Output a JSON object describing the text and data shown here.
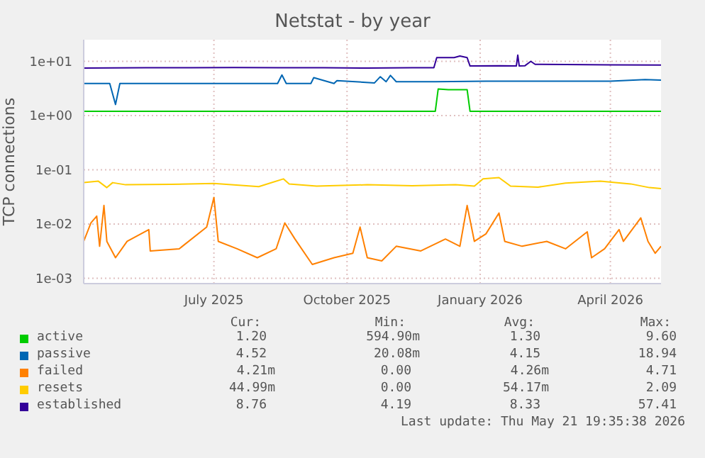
{
  "chart_data": {
    "type": "line",
    "title": "Netstat - by year",
    "ylabel": "TCP connections",
    "log": true,
    "grid": true,
    "legend": "bottom",
    "marker": "none",
    "line_style": "solid",
    "xlim": [
      "2025-04-02",
      "2026-05-06"
    ],
    "xticks": [
      {
        "value": "2025-07-01",
        "label": "July 2025"
      },
      {
        "value": "2025-10-01",
        "label": "October 2025"
      },
      {
        "value": "2026-01-01",
        "label": "January 2026"
      },
      {
        "value": "2026-04-01",
        "label": "April 2026"
      }
    ],
    "ylim": [
      0.0008,
      25
    ],
    "yticks": [
      {
        "value": 0.001,
        "label": "1e-03"
      },
      {
        "value": 0.01,
        "label": "1e-02"
      },
      {
        "value": 0.1,
        "label": "1e-01"
      },
      {
        "value": 1,
        "label": "1e+00"
      },
      {
        "value": 10,
        "label": "1e+01"
      }
    ],
    "series": [
      {
        "name": "active",
        "color": "#00cc00",
        "x": [
          "2025-04-02",
          "2025-12-01",
          "2025-12-03",
          "2025-12-10",
          "2025-12-23",
          "2025-12-25",
          "2026-05-06"
        ],
        "values": [
          1.2,
          1.2,
          3.1,
          3.0,
          3.0,
          1.2,
          1.2
        ]
      },
      {
        "name": "passive",
        "color": "#0066b3",
        "x": [
          "2025-04-02",
          "2025-04-20",
          "2025-04-24",
          "2025-04-27",
          "2025-05-10",
          "2025-06-10",
          "2025-07-01",
          "2025-08-14",
          "2025-08-17",
          "2025-08-20",
          "2025-09-06",
          "2025-09-08",
          "2025-09-22",
          "2025-09-24",
          "2025-10-20",
          "2025-10-24",
          "2025-10-28",
          "2025-10-31",
          "2025-11-04",
          "2025-12-01",
          "2026-01-05",
          "2026-02-01",
          "2026-03-01",
          "2026-04-01",
          "2026-04-25",
          "2026-05-06"
        ],
        "values": [
          3.9,
          3.9,
          1.6,
          3.9,
          3.9,
          3.9,
          3.9,
          3.9,
          5.6,
          3.9,
          3.9,
          5,
          3.9,
          4.4,
          4.0,
          5.2,
          4.2,
          5.5,
          4.2,
          4.2,
          4.3,
          4.3,
          4.3,
          4.3,
          4.6,
          4.5
        ]
      },
      {
        "name": "failed",
        "color": "#ff8000",
        "x": [
          "2025-04-02",
          "2025-04-07",
          "2025-04-11",
          "2025-04-13",
          "2025-04-16",
          "2025-04-18",
          "2025-04-24",
          "2025-05-02",
          "2025-05-17",
          "2025-05-18",
          "2025-06-07",
          "2025-06-26",
          "2025-07-01",
          "2025-07-04",
          "2025-07-17",
          "2025-07-31",
          "2025-08-13",
          "2025-08-19",
          "2025-08-26",
          "2025-09-07",
          "2025-09-22",
          "2025-10-05",
          "2025-10-10",
          "2025-10-15",
          "2025-10-25",
          "2025-11-04",
          "2025-11-21",
          "2025-12-08",
          "2025-12-18",
          "2025-12-23",
          "2025-12-28",
          "2026-01-05",
          "2026-01-14",
          "2026-01-18",
          "2026-01-30",
          "2026-02-16",
          "2026-03-01",
          "2026-03-16",
          "2026-03-19",
          "2026-03-28",
          "2026-04-07",
          "2026-04-10",
          "2026-04-22",
          "2026-04-27",
          "2026-05-02",
          "2026-05-06"
        ],
        "values": [
          0.0048,
          0.0105,
          0.014,
          0.0039,
          0.022,
          0.0048,
          0.0024,
          0.0048,
          0.0079,
          0.0032,
          0.0035,
          0.0088,
          0.031,
          0.0048,
          0.0035,
          0.0024,
          0.0035,
          0.0105,
          0.0053,
          0.0018,
          0.0024,
          0.0029,
          0.0088,
          0.0024,
          0.0021,
          0.0039,
          0.0032,
          0.0053,
          0.0039,
          0.022,
          0.0048,
          0.0066,
          0.016,
          0.0048,
          0.0039,
          0.0048,
          0.0035,
          0.0072,
          0.0024,
          0.0035,
          0.0079,
          0.0048,
          0.013,
          0.0048,
          0.0029,
          0.0039
        ]
      },
      {
        "name": "resets",
        "color": "#ffcc00",
        "x": [
          "2025-04-02",
          "2025-04-12",
          "2025-04-18",
          "2025-04-22",
          "2025-05-01",
          "2025-06-01",
          "2025-07-01",
          "2025-08-01",
          "2025-08-18",
          "2025-08-22",
          "2025-09-10",
          "2025-10-15",
          "2025-11-15",
          "2025-12-15",
          "2025-12-28",
          "2026-01-03",
          "2026-01-14",
          "2026-01-22",
          "2026-02-10",
          "2026-03-01",
          "2026-03-25",
          "2026-04-15",
          "2026-04-28",
          "2026-05-06"
        ],
        "values": [
          0.058,
          0.062,
          0.047,
          0.058,
          0.053,
          0.054,
          0.056,
          0.049,
          0.068,
          0.055,
          0.05,
          0.053,
          0.051,
          0.053,
          0.05,
          0.068,
          0.072,
          0.05,
          0.048,
          0.057,
          0.062,
          0.055,
          0.047,
          0.045
        ]
      },
      {
        "name": "established",
        "color": "#330099",
        "x": [
          "2025-04-02",
          "2025-05-15",
          "2025-06-15",
          "2025-07-15",
          "2025-08-15",
          "2025-09-15",
          "2025-10-15",
          "2025-11-15",
          "2025-11-30",
          "2025-12-02",
          "2025-12-14",
          "2025-12-18",
          "2025-12-23",
          "2025-12-25",
          "2026-01-15",
          "2026-01-26",
          "2026-01-27",
          "2026-01-28",
          "2026-02-01",
          "2026-02-05",
          "2026-02-08",
          "2026-03-01",
          "2026-04-01",
          "2026-05-06"
        ],
        "values": [
          7.5,
          7.6,
          7.6,
          7.7,
          7.6,
          7.6,
          7.5,
          7.6,
          7.6,
          11.7,
          11.7,
          12.5,
          11.7,
          8.2,
          8.3,
          8.2,
          13,
          8.2,
          8.3,
          10,
          8.8,
          8.7,
          8.6,
          8.5
        ]
      }
    ],
    "annotations": [
      "Cur:",
      "Min:",
      "Avg:",
      "Max:",
      "1.20",
      "594.90m",
      "1.30",
      "9.60",
      "4.52",
      "20.08m",
      "4.15",
      "18.94",
      "4.21m",
      "0.00",
      "4.26m",
      "4.71",
      "44.99m",
      "0.00",
      "54.17m",
      "2.09",
      "8.76",
      "4.19",
      "8.33",
      "57.41",
      "Last update: Thu May 21 19:35:38 2026"
    ]
  }
}
